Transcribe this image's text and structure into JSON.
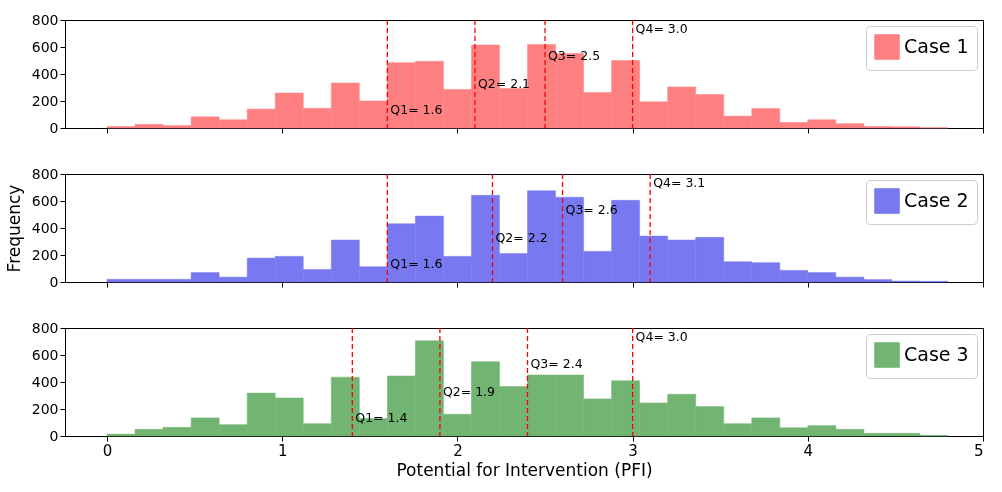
{
  "chart_data": [
    {
      "type": "histogram",
      "bins": [
        0,
        0.16,
        0.32,
        0.48,
        0.64,
        0.8,
        0.96,
        1.12,
        1.28,
        1.44,
        1.6,
        1.76,
        1.92,
        2.08,
        2.24,
        2.4,
        2.56,
        2.72,
        2.88,
        3.04,
        3.2,
        3.36,
        3.52,
        3.68,
        3.84,
        4.0,
        4.16,
        4.32,
        4.48,
        4.64,
        4.8
      ],
      "series": [
        {
          "name": "Case 1",
          "color": "#ff8080",
          "values": [
            11,
            27,
            18,
            83,
            61,
            140,
            259,
            146,
            333,
            200,
            484,
            495,
            286,
            615,
            293,
            619,
            552,
            263,
            500,
            194,
            304,
            248,
            88,
            144,
            41,
            61,
            32,
            11,
            9,
            2
          ]
        }
      ],
      "xlim": [
        -0.24,
        5
      ],
      "xticks": [
        0,
        1,
        2,
        3,
        4,
        5
      ],
      "ylim": [
        0,
        800
      ],
      "yticks": [
        0,
        200,
        400,
        600,
        800
      ],
      "tick_labels": "y",
      "legend": "top right",
      "ref_lines": [
        {
          "axis": "x",
          "value": 1.6,
          "label": "Q1= 1.6",
          "color": "#ff0000",
          "line_style": "dashed"
        },
        {
          "axis": "x",
          "value": 2.1,
          "label": "Q2= 2.1",
          "color": "#ff0000",
          "line_style": "dashed"
        },
        {
          "axis": "x",
          "value": 2.5,
          "label": "Q3= 2.5",
          "color": "#ff0000",
          "line_style": "dashed"
        },
        {
          "axis": "x",
          "value": 3.0,
          "label": "Q4= 3.0",
          "color": "#ff0000",
          "line_style": "dashed"
        }
      ]
    },
    {
      "type": "histogram",
      "bins": [
        0,
        0.16,
        0.32,
        0.48,
        0.64,
        0.8,
        0.96,
        1.12,
        1.28,
        1.44,
        1.6,
        1.76,
        1.92,
        2.08,
        2.24,
        2.4,
        2.56,
        2.72,
        2.88,
        3.04,
        3.2,
        3.36,
        3.52,
        3.68,
        3.84,
        4.0,
        4.16,
        4.32,
        4.48,
        4.64,
        4.8
      ],
      "series": [
        {
          "name": "Case 2",
          "color": "#7878f0",
          "values": [
            20,
            20,
            20,
            70,
            36,
            177,
            190,
            93,
            311,
            113,
            431,
            488,
            190,
            642,
            211,
            676,
            628,
            227,
            605,
            340,
            311,
            331,
            150,
            143,
            86,
            70,
            36,
            18,
            7,
            5
          ]
        }
      ],
      "ylabel": "Frequency",
      "xlim": [
        -0.24,
        5
      ],
      "xticks": [
        0,
        1,
        2,
        3,
        4,
        5
      ],
      "ylim": [
        0,
        800
      ],
      "yticks": [
        0,
        200,
        400,
        600,
        800
      ],
      "tick_labels": "y",
      "legend": "top right",
      "ref_lines": [
        {
          "axis": "x",
          "value": 1.6,
          "label": "Q1= 1.6",
          "color": "#ff0000",
          "line_style": "dashed"
        },
        {
          "axis": "x",
          "value": 2.2,
          "label": "Q2= 2.2",
          "color": "#ff0000",
          "line_style": "dashed"
        },
        {
          "axis": "x",
          "value": 2.6,
          "label": "Q3= 2.6",
          "color": "#ff0000",
          "line_style": "dashed"
        },
        {
          "axis": "x",
          "value": 3.1,
          "label": "Q4= 3.1",
          "color": "#ff0000",
          "line_style": "dashed"
        }
      ]
    },
    {
      "type": "histogram",
      "bins": [
        0,
        0.16,
        0.32,
        0.48,
        0.64,
        0.8,
        0.96,
        1.12,
        1.28,
        1.44,
        1.6,
        1.76,
        1.92,
        2.08,
        2.24,
        2.4,
        2.56,
        2.72,
        2.88,
        3.04,
        3.2,
        3.36,
        3.52,
        3.68,
        3.84,
        4.0,
        4.16,
        4.32,
        4.48,
        4.64,
        4.8
      ],
      "series": [
        {
          "name": "Case 3",
          "color": "#72b472",
          "values": [
            14,
            50,
            64,
            134,
            84,
            318,
            282,
            91,
            436,
            130,
            445,
            705,
            161,
            550,
            366,
            452,
            452,
            275,
            409,
            245,
            309,
            218,
            91,
            134,
            61,
            77,
            50,
            20,
            20,
            5
          ]
        }
      ],
      "xlabel": "Potential for Intervention (PFI)",
      "xlim": [
        -0.24,
        5
      ],
      "xticks": [
        0,
        1,
        2,
        3,
        4,
        5
      ],
      "ylim": [
        0,
        800
      ],
      "yticks": [
        0,
        200,
        400,
        600,
        800
      ],
      "legend": "top right",
      "ref_lines": [
        {
          "axis": "x",
          "value": 1.4,
          "label": "Q1= 1.4",
          "color": "#ff0000",
          "line_style": "dashed"
        },
        {
          "axis": "x",
          "value": 1.9,
          "label": "Q2= 1.9",
          "color": "#ff0000",
          "line_style": "dashed"
        },
        {
          "axis": "x",
          "value": 2.4,
          "label": "Q3= 2.4",
          "color": "#ff0000",
          "line_style": "dashed"
        },
        {
          "axis": "x",
          "value": 3.0,
          "label": "Q4= 3.0",
          "color": "#ff0000",
          "line_style": "dashed"
        }
      ]
    }
  ]
}
